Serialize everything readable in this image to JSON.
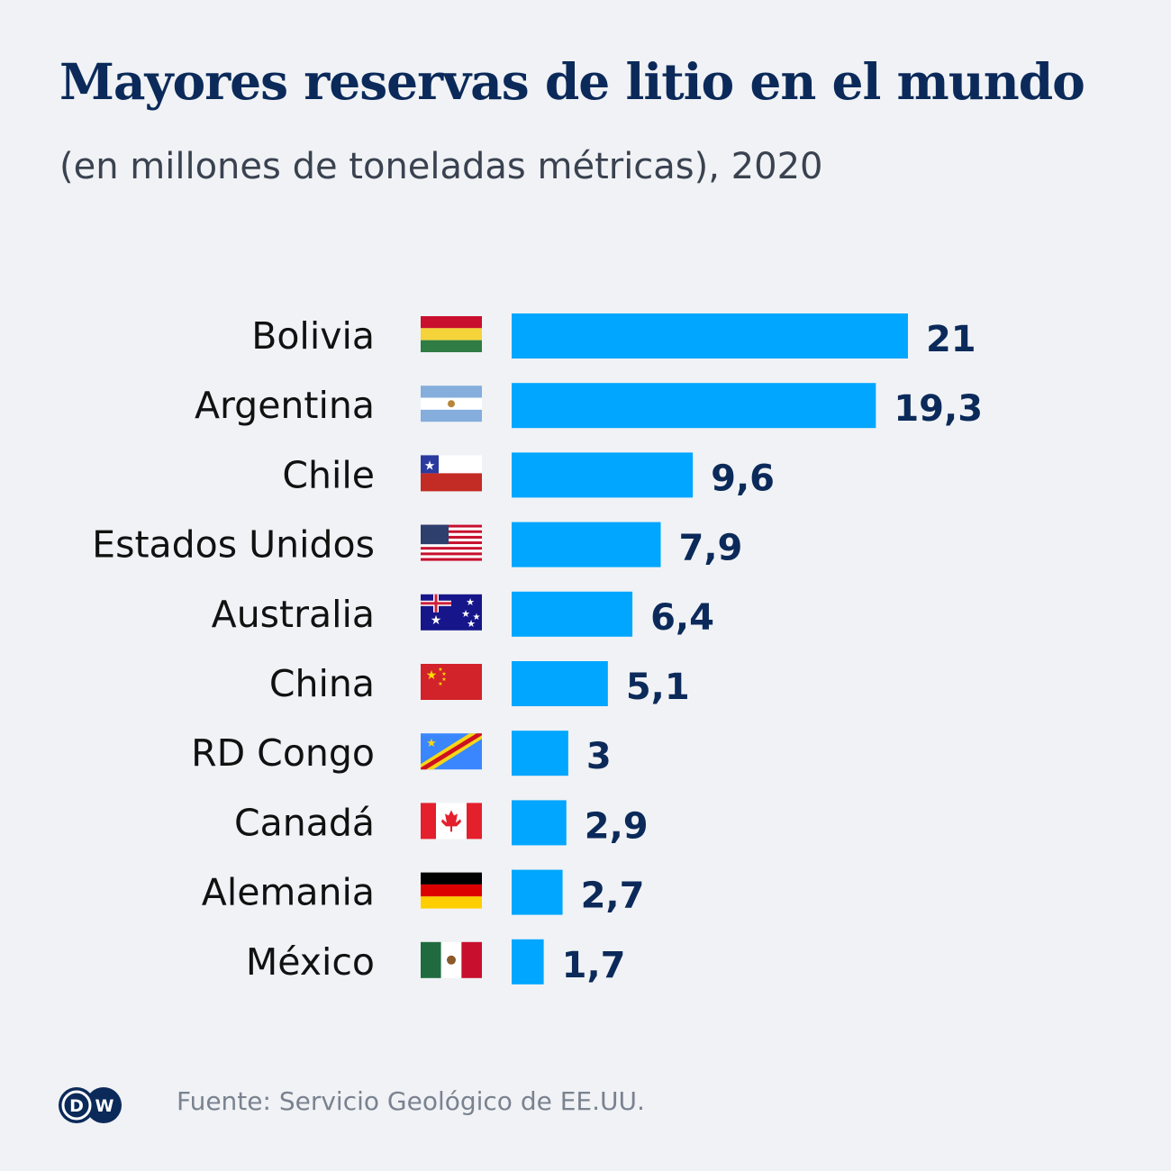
{
  "header": {
    "title": "Mayores reservas de litio en el mundo",
    "subtitle": "(en millones de toneladas métricas), 2020"
  },
  "chart_data": {
    "type": "bar",
    "orientation": "horizontal",
    "title": "Mayores reservas de litio en el mundo",
    "subtitle": "(en millones de toneladas métricas), 2020",
    "categories": [
      "Bolivia",
      "Argentina",
      "Chile",
      "Estados Unidos",
      "Australia",
      "China",
      "RD Congo",
      "Canadá",
      "Alemania",
      "México"
    ],
    "values": [
      21,
      19.3,
      9.6,
      7.9,
      6.4,
      5.1,
      3,
      2.9,
      2.7,
      1.7
    ],
    "value_labels": [
      "21",
      "19,3",
      "9,6",
      "7,9",
      "6,4",
      "5,1",
      "3",
      "2,9",
      "2,7",
      "1,7"
    ],
    "flag_icons": [
      "flag-bolivia-icon",
      "flag-argentina-icon",
      "flag-chile-icon",
      "flag-usa-icon",
      "flag-australia-icon",
      "flag-china-icon",
      "flag-drcongo-icon",
      "flag-canada-icon",
      "flag-germany-icon",
      "flag-mexico-icon"
    ],
    "bar_color": "#00a6ff",
    "value_color": "#0b2a5a",
    "grid": false,
    "axes_visible": false
  },
  "footer": {
    "source": "Fuente: Servicio Geológico de EE.UU.",
    "logo_text": "DW",
    "logo_color": "#0b2a5a"
  }
}
